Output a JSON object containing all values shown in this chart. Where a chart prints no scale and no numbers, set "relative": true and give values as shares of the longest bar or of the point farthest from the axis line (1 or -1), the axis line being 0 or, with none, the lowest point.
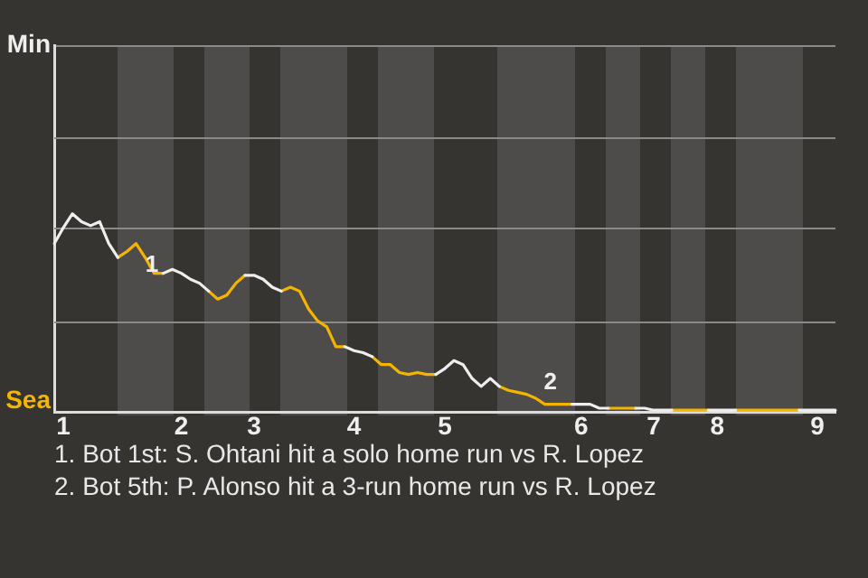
{
  "chart_data": {
    "type": "line",
    "relative": true,
    "categories": [
      null,
      "1",
      null,
      null,
      null,
      null,
      null,
      null,
      null,
      null,
      null,
      null,
      null,
      null,
      "2",
      null,
      null,
      null,
      null,
      null,
      null,
      null,
      "3",
      null,
      null,
      null,
      null,
      null,
      null,
      null,
      null,
      null,
      null,
      "4",
      null,
      null,
      null,
      null,
      null,
      null,
      null,
      null,
      null,
      "5",
      null,
      null,
      null,
      null,
      null,
      null,
      null,
      null,
      null,
      null,
      null,
      null,
      null,
      null,
      "6",
      null,
      null,
      null,
      null,
      null,
      null,
      null,
      "7",
      null,
      null,
      null,
      null,
      null,
      null,
      "8",
      null,
      null,
      null,
      null,
      null,
      null,
      null,
      null,
      null,
      null,
      "9",
      null,
      null
    ],
    "marker": "none",
    "ref_lines": [
      {
        "axis": "y",
        "value": 0.46,
        "color": "#8a8a8a"
      },
      {
        "axis": "y",
        "value": 0.93,
        "color": "#8a8a8a"
      },
      {
        "axis": "y",
        "value": 1.39,
        "color": "#8a8a8a"
      }
    ],
    "series": [
      {
        "color": "#eeeeee",
        "values": [
          0.85,
          0.93,
          1,
          0.96,
          0.94,
          0.96,
          0.85,
          0.78,
          null,
          null,
          null,
          null,
          0.7,
          0.72,
          0.7,
          0.67,
          0.65,
          0.61,
          null,
          null,
          null,
          0.69,
          0.69,
          0.67,
          0.63,
          0.61,
          null,
          null,
          null,
          null,
          null,
          null,
          0.33,
          0.31,
          0.3,
          0.28,
          null,
          null,
          null,
          null,
          null,
          null,
          0.19,
          0.22,
          0.26,
          0.24,
          0.17,
          0.13,
          0.17,
          0.13,
          null,
          null,
          null,
          null,
          null,
          null,
          null,
          0.04,
          0.04,
          0.04,
          0.02,
          0.02,
          null,
          null,
          0.02,
          0.02,
          0.01,
          0.01,
          0.01,
          null,
          null,
          null,
          0.01,
          0.01,
          0.01,
          0.01,
          null,
          null,
          null,
          null,
          null,
          null,
          0.01,
          0.01,
          0.01,
          0.01,
          0.01
        ]
      },
      {
        "color": "#f5b400",
        "values": [
          null,
          null,
          null,
          null,
          null,
          null,
          null,
          0.78,
          0.81,
          0.85,
          0.78,
          0.7,
          0.7,
          null,
          null,
          null,
          null,
          0.61,
          0.57,
          0.59,
          0.65,
          0.69,
          null,
          null,
          null,
          0.61,
          0.63,
          0.61,
          0.52,
          0.46,
          0.43,
          0.33,
          0.33,
          null,
          null,
          0.28,
          0.24,
          0.24,
          0.2,
          0.19,
          0.2,
          0.19,
          0.19,
          null,
          null,
          null,
          null,
          null,
          null,
          0.13,
          0.11,
          0.1,
          0.09,
          0.07,
          0.04,
          0.04,
          0.04,
          0.04,
          null,
          null,
          null,
          0.02,
          0.02,
          0.02,
          0.02,
          null,
          null,
          null,
          0.01,
          0.01,
          0.01,
          0.01,
          0.01,
          null,
          null,
          0.01,
          0.01,
          0.01,
          0.01,
          0.01,
          0.01,
          0.01,
          0.01,
          null,
          null,
          null,
          null
        ]
      }
    ],
    "annotations": [
      "Min",
      "Sea",
      "1",
      "2",
      "1. Bot 1st: S. Ohtani hit a solo home run vs R. Lopez",
      "2. Bot 5th: P. Alonso hit a 3-run home run vs R. Lopez"
    ]
  }
}
